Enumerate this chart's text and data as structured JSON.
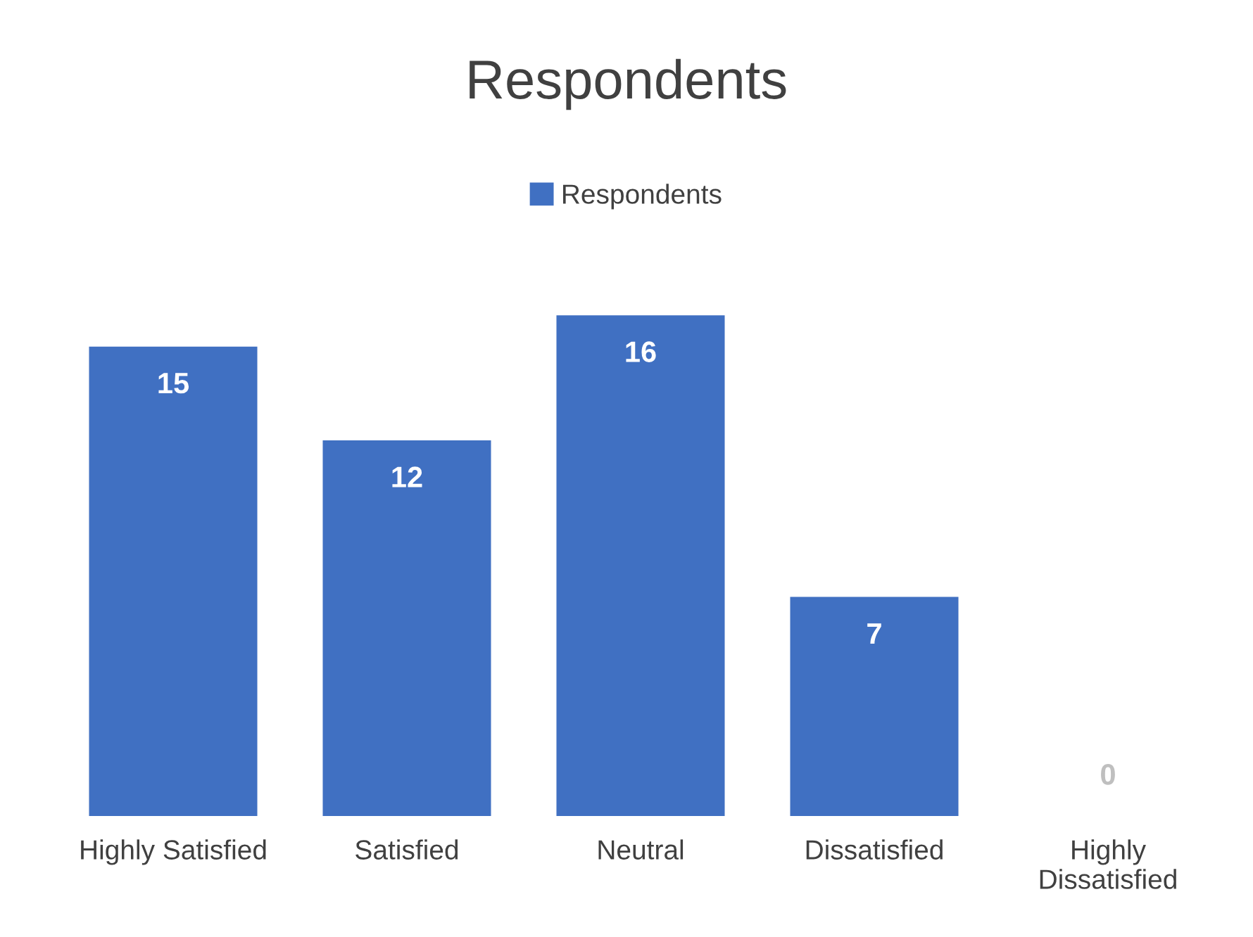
{
  "chart_data": {
    "type": "bar",
    "title": "Respondents",
    "categories": [
      "Highly Satisfied",
      "Satisfied",
      "Neutral",
      "Dissatisfied",
      "Highly Dissatisfied"
    ],
    "series": [
      {
        "name": "Respondents",
        "color": "#4070c2",
        "values": [
          15,
          12,
          16,
          7,
          0
        ]
      }
    ],
    "data_labels": true,
    "legend": "top",
    "grid": false
  }
}
